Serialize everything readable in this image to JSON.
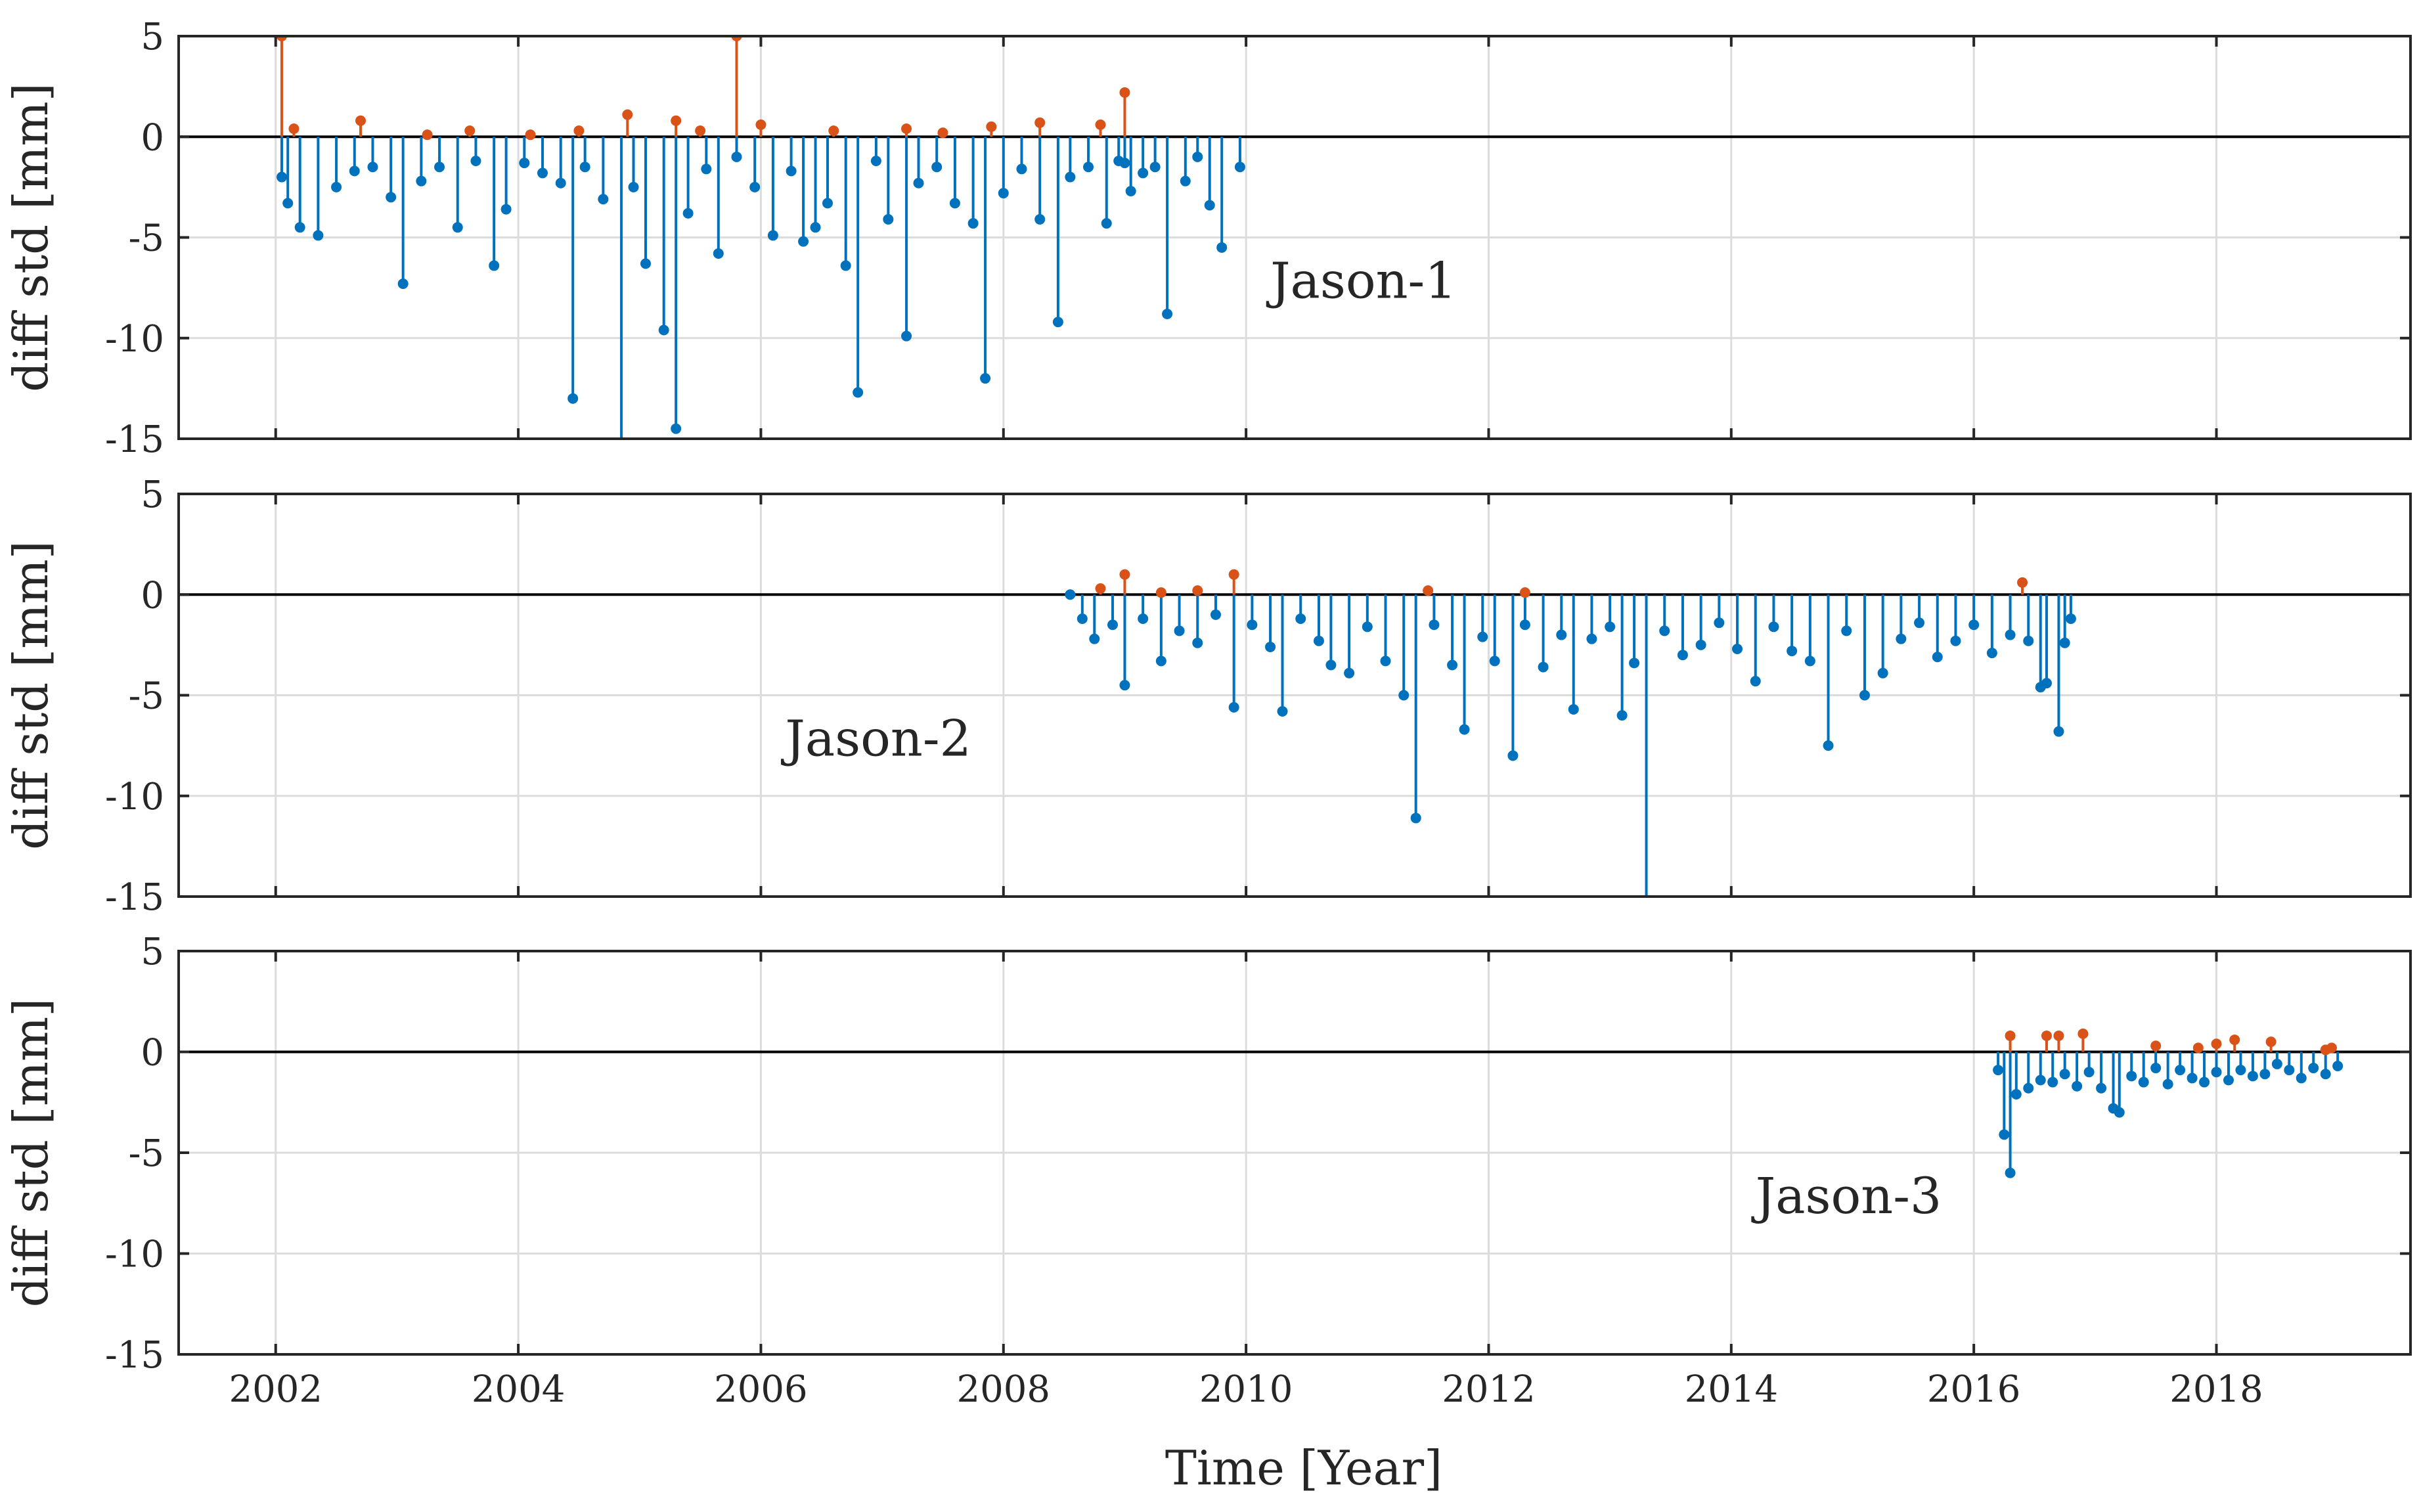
{
  "chart_data": {
    "type": "stem",
    "xlabel": "Time [Year]",
    "ylabel": "diff std [mm]",
    "xlim": [
      2001.2,
      2019.6
    ],
    "ylim": [
      -15,
      5
    ],
    "xticks": [
      2002,
      2004,
      2006,
      2008,
      2010,
      2012,
      2014,
      2016,
      2018
    ],
    "yticks": [
      5,
      0,
      -5,
      -10,
      -15
    ],
    "colors": {
      "negative": "#0072BD",
      "positive": "#D95319",
      "zero_line": "#000000",
      "grid": "#dcdcdc"
    },
    "panels": [
      {
        "name": "Jason-1",
        "label": "Jason-1",
        "label_pos": [
          2010.2,
          -8
        ],
        "positive": [
          [
            2002.05,
            5
          ],
          [
            2002.15,
            0.4
          ],
          [
            2002.7,
            0.8
          ],
          [
            2003.25,
            0.1
          ],
          [
            2003.6,
            0.3
          ],
          [
            2004.1,
            0.1
          ],
          [
            2004.5,
            0.3
          ],
          [
            2004.9,
            1.1
          ],
          [
            2005.3,
            0.8
          ],
          [
            2005.5,
            0.3
          ],
          [
            2005.8,
            5
          ],
          [
            2006.0,
            0.6
          ],
          [
            2006.6,
            0.3
          ],
          [
            2007.2,
            0.4
          ],
          [
            2007.5,
            0.2
          ],
          [
            2007.9,
            0.5
          ],
          [
            2008.3,
            0.7
          ],
          [
            2008.8,
            0.6
          ],
          [
            2009.0,
            2.2
          ]
        ],
        "negative": [
          [
            2002.05,
            -2.0
          ],
          [
            2002.1,
            -3.3
          ],
          [
            2002.2,
            -4.5
          ],
          [
            2002.35,
            -4.9
          ],
          [
            2002.5,
            -2.5
          ],
          [
            2002.65,
            -1.7
          ],
          [
            2002.8,
            -1.5
          ],
          [
            2002.95,
            -3.0
          ],
          [
            2003.05,
            -7.3
          ],
          [
            2003.2,
            -2.2
          ],
          [
            2003.35,
            -1.5
          ],
          [
            2003.5,
            -4.5
          ],
          [
            2003.65,
            -1.2
          ],
          [
            2003.8,
            -6.4
          ],
          [
            2003.9,
            -3.6
          ],
          [
            2004.05,
            -1.3
          ],
          [
            2004.2,
            -1.8
          ],
          [
            2004.35,
            -2.3
          ],
          [
            2004.45,
            -13.0
          ],
          [
            2004.55,
            -1.5
          ],
          [
            2004.7,
            -3.1
          ],
          [
            2004.85,
            -15
          ],
          [
            2004.95,
            -2.5
          ],
          [
            2005.05,
            -6.3
          ],
          [
            2005.2,
            -9.6
          ],
          [
            2005.3,
            -14.5
          ],
          [
            2005.4,
            -3.8
          ],
          [
            2005.55,
            -1.6
          ],
          [
            2005.65,
            -5.8
          ],
          [
            2005.8,
            -1.0
          ],
          [
            2005.95,
            -2.5
          ],
          [
            2006.1,
            -4.9
          ],
          [
            2006.25,
            -1.7
          ],
          [
            2006.35,
            -5.2
          ],
          [
            2006.45,
            -4.5
          ],
          [
            2006.55,
            -3.3
          ],
          [
            2006.7,
            -6.4
          ],
          [
            2006.8,
            -12.7
          ],
          [
            2006.95,
            -1.2
          ],
          [
            2007.05,
            -4.1
          ],
          [
            2007.2,
            -9.9
          ],
          [
            2007.3,
            -2.3
          ],
          [
            2007.45,
            -1.5
          ],
          [
            2007.6,
            -3.3
          ],
          [
            2007.75,
            -4.3
          ],
          [
            2007.85,
            -12.0
          ],
          [
            2008.0,
            -2.8
          ],
          [
            2008.15,
            -1.6
          ],
          [
            2008.3,
            -4.1
          ],
          [
            2008.45,
            -9.2
          ],
          [
            2008.55,
            -2.0
          ],
          [
            2008.7,
            -1.5
          ],
          [
            2008.85,
            -4.3
          ],
          [
            2008.95,
            -1.2
          ],
          [
            2009.05,
            -2.7
          ],
          [
            2009.15,
            -1.8
          ],
          [
            2009.25,
            -1.5
          ],
          [
            2009.35,
            -8.8
          ],
          [
            2009.5,
            -2.2
          ],
          [
            2009.6,
            -1.0
          ],
          [
            2009.7,
            -3.4
          ],
          [
            2009.8,
            -5.5
          ],
          [
            2009.95,
            -1.5
          ],
          [
            2009.0,
            -1.3
          ]
        ]
      },
      {
        "name": "Jason-2",
        "label": "Jason-2",
        "label_pos": [
          2006.2,
          -8
        ],
        "positive": [
          [
            2008.8,
            0.3
          ],
          [
            2009.0,
            1.0
          ],
          [
            2009.3,
            0.1
          ],
          [
            2009.6,
            0.2
          ],
          [
            2009.9,
            1.0
          ],
          [
            2011.5,
            0.2
          ],
          [
            2012.3,
            0.1
          ],
          [
            2016.4,
            0.6
          ]
        ],
        "negative": [
          [
            2008.55,
            0
          ],
          [
            2008.65,
            -1.2
          ],
          [
            2008.75,
            -2.2
          ],
          [
            2008.9,
            -1.5
          ],
          [
            2009.0,
            -4.5
          ],
          [
            2009.15,
            -1.2
          ],
          [
            2009.3,
            -3.3
          ],
          [
            2009.45,
            -1.8
          ],
          [
            2009.6,
            -2.4
          ],
          [
            2009.75,
            -1.0
          ],
          [
            2009.9,
            -5.6
          ],
          [
            2010.05,
            -1.5
          ],
          [
            2010.2,
            -2.6
          ],
          [
            2010.3,
            -5.8
          ],
          [
            2010.45,
            -1.2
          ],
          [
            2010.6,
            -2.3
          ],
          [
            2010.7,
            -3.5
          ],
          [
            2010.85,
            -3.9
          ],
          [
            2011.0,
            -1.6
          ],
          [
            2011.15,
            -3.3
          ],
          [
            2011.3,
            -5.0
          ],
          [
            2011.4,
            -11.1
          ],
          [
            2011.55,
            -1.5
          ],
          [
            2011.7,
            -3.5
          ],
          [
            2011.8,
            -6.7
          ],
          [
            2011.95,
            -2.1
          ],
          [
            2012.05,
            -3.3
          ],
          [
            2012.2,
            -8.0
          ],
          [
            2012.3,
            -1.5
          ],
          [
            2012.45,
            -3.6
          ],
          [
            2012.6,
            -2.0
          ],
          [
            2012.7,
            -5.7
          ],
          [
            2012.85,
            -2.2
          ],
          [
            2013.0,
            -1.6
          ],
          [
            2013.1,
            -6.0
          ],
          [
            2013.2,
            -3.4
          ],
          [
            2013.3,
            -15
          ],
          [
            2013.45,
            -1.8
          ],
          [
            2013.6,
            -3.0
          ],
          [
            2013.75,
            -2.5
          ],
          [
            2013.9,
            -1.4
          ],
          [
            2014.05,
            -2.7
          ],
          [
            2014.2,
            -4.3
          ],
          [
            2014.35,
            -1.6
          ],
          [
            2014.5,
            -2.8
          ],
          [
            2014.65,
            -3.3
          ],
          [
            2014.8,
            -7.5
          ],
          [
            2014.95,
            -1.8
          ],
          [
            2015.1,
            -5.0
          ],
          [
            2015.25,
            -3.9
          ],
          [
            2015.4,
            -2.2
          ],
          [
            2015.55,
            -1.4
          ],
          [
            2015.7,
            -3.1
          ],
          [
            2015.85,
            -2.3
          ],
          [
            2016.0,
            -1.5
          ],
          [
            2016.15,
            -2.9
          ],
          [
            2016.3,
            -2.0
          ],
          [
            2016.45,
            -2.3
          ],
          [
            2016.55,
            -4.6
          ],
          [
            2016.6,
            -4.4
          ],
          [
            2016.7,
            -6.8
          ],
          [
            2016.75,
            -2.4
          ],
          [
            2016.8,
            -1.2
          ]
        ]
      },
      {
        "name": "Jason-3",
        "label": "Jason-3",
        "label_pos": [
          2014.2,
          -8
        ],
        "positive": [
          [
            2016.3,
            0.8
          ],
          [
            2016.6,
            0.8
          ],
          [
            2016.7,
            0.8
          ],
          [
            2016.9,
            0.9
          ],
          [
            2017.5,
            0.3
          ],
          [
            2017.85,
            0.2
          ],
          [
            2018.0,
            0.4
          ],
          [
            2018.15,
            0.6
          ],
          [
            2018.45,
            0.5
          ],
          [
            2018.9,
            0.1
          ],
          [
            2018.95,
            0.2
          ]
        ],
        "negative": [
          [
            2016.2,
            -0.9
          ],
          [
            2016.25,
            -4.1
          ],
          [
            2016.3,
            -6.0
          ],
          [
            2016.35,
            -2.1
          ],
          [
            2016.45,
            -1.8
          ],
          [
            2016.55,
            -1.4
          ],
          [
            2016.65,
            -1.5
          ],
          [
            2016.75,
            -1.1
          ],
          [
            2016.85,
            -1.7
          ],
          [
            2016.95,
            -1.0
          ],
          [
            2017.05,
            -1.8
          ],
          [
            2017.15,
            -2.8
          ],
          [
            2017.2,
            -3.0
          ],
          [
            2017.3,
            -1.2
          ],
          [
            2017.4,
            -1.5
          ],
          [
            2017.5,
            -0.8
          ],
          [
            2017.6,
            -1.6
          ],
          [
            2017.7,
            -0.9
          ],
          [
            2017.8,
            -1.3
          ],
          [
            2017.9,
            -1.5
          ],
          [
            2018.0,
            -1.0
          ],
          [
            2018.1,
            -1.4
          ],
          [
            2018.2,
            -0.9
          ],
          [
            2018.3,
            -1.2
          ],
          [
            2018.4,
            -1.1
          ],
          [
            2018.5,
            -0.6
          ],
          [
            2018.6,
            -0.9
          ],
          [
            2018.7,
            -1.3
          ],
          [
            2018.8,
            -0.8
          ],
          [
            2018.9,
            -1.1
          ],
          [
            2019.0,
            -0.7
          ]
        ]
      }
    ]
  }
}
